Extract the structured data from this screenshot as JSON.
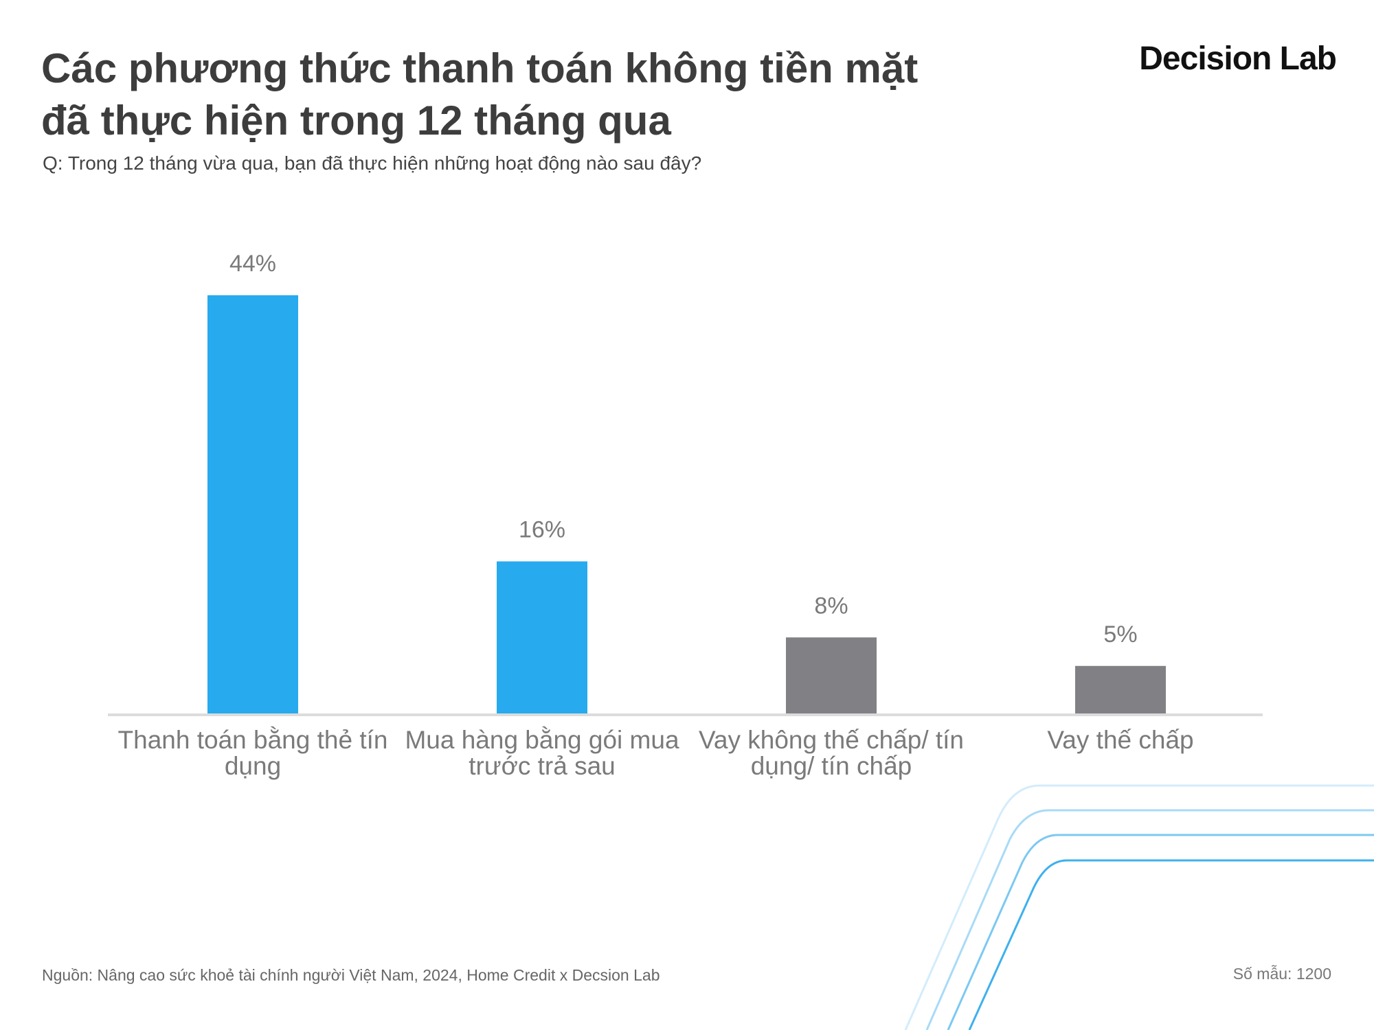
{
  "header": {
    "title_line1": "Các phương thức thanh toán không tiền mặt",
    "title_line2": "đã thực hiện trong 12 tháng qua",
    "subtitle": "Q: Trong 12 tháng vừa qua, bạn đã thực hiện những hoạt động nào sau đây?",
    "logo": "Decision Lab"
  },
  "chart_data": {
    "type": "bar",
    "title": "Các phương thức thanh toán không tiền mặt đã thực hiện trong 12 tháng qua",
    "categories": [
      [
        "Thanh toán bằng thẻ tín",
        "dụng"
      ],
      [
        "Mua hàng bằng gói mua",
        "trước trả sau"
      ],
      [
        "Vay không thế chấp/ tín",
        "dụng/ tín chấp"
      ],
      [
        "Vay thế chấp"
      ]
    ],
    "values": [
      44,
      16,
      8,
      5
    ],
    "labels": [
      "44%",
      "16%",
      "8%",
      "5%"
    ],
    "colors": [
      "#27aaee",
      "#27aaee",
      "#818185",
      "#818185"
    ],
    "xlabel": "",
    "ylabel": "",
    "ylim": [
      0,
      44
    ],
    "grid": false
  },
  "footer": {
    "source": "Nguồn: Nâng cao sức khoẻ tài chính người Việt Nam, 2024, Home Credit x Decsion Lab",
    "sample": "Số mẫu: 1200"
  }
}
